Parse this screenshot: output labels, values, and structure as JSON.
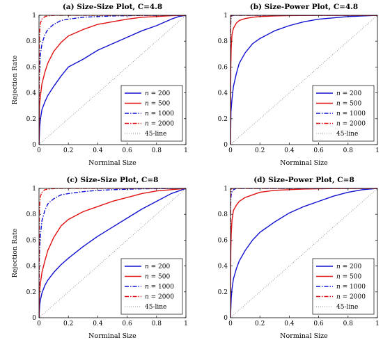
{
  "chart_data": [
    {
      "type": "line",
      "title": "(a) Size-Size Plot, C=4.8",
      "xlabel": "Norminal Size",
      "ylabel": "Rejection Rate",
      "xlim": [
        0,
        1
      ],
      "ylim": [
        0,
        1
      ],
      "xticks": [
        "0",
        "0.2",
        "0.4",
        "0.6",
        "0.8",
        "1"
      ],
      "yticks": [
        "0",
        "0.2",
        "0.4",
        "0.6",
        "0.8",
        "1"
      ],
      "legend_position": "bottom-right",
      "series": [
        {
          "name": "n = 200",
          "var": "n",
          "eq": "= 200",
          "color": "#1010d0",
          "dash": "solid",
          "x": [
            0,
            0.005,
            0.01,
            0.02,
            0.04,
            0.06,
            0.1,
            0.15,
            0.2,
            0.3,
            0.4,
            0.5,
            0.6,
            0.7,
            0.8,
            0.9,
            0.95,
            1
          ],
          "y": [
            0,
            0.14,
            0.2,
            0.27,
            0.33,
            0.38,
            0.45,
            0.53,
            0.6,
            0.66,
            0.73,
            0.78,
            0.83,
            0.88,
            0.92,
            0.97,
            0.99,
            1
          ]
        },
        {
          "name": "n = 500",
          "var": "n",
          "eq": "= 500",
          "color": "#e01010",
          "dash": "solid",
          "x": [
            0,
            0.003,
            0.01,
            0.02,
            0.04,
            0.06,
            0.1,
            0.15,
            0.2,
            0.3,
            0.4,
            0.5,
            0.6,
            0.7,
            0.8,
            0.9,
            1
          ],
          "y": [
            0,
            0.3,
            0.38,
            0.47,
            0.56,
            0.63,
            0.72,
            0.79,
            0.84,
            0.89,
            0.93,
            0.95,
            0.97,
            0.985,
            0.99,
            0.997,
            1
          ]
        },
        {
          "name": "n = 1000",
          "var": "n",
          "eq": "= 1000",
          "color": "#1010d0",
          "dash": "6 2 1.5 2",
          "x": [
            0,
            0.002,
            0.005,
            0.01,
            0.02,
            0.04,
            0.06,
            0.1,
            0.15,
            0.2,
            0.3,
            0.4,
            0.5,
            0.7,
            1
          ],
          "y": [
            0,
            0.5,
            0.6,
            0.7,
            0.78,
            0.85,
            0.89,
            0.93,
            0.96,
            0.97,
            0.985,
            0.99,
            0.995,
            0.999,
            1
          ]
        },
        {
          "name": "n = 2000",
          "var": "n",
          "eq": "= 2000",
          "color": "#e01010",
          "dash": "6 2 1.5 2",
          "x": [
            0,
            0.002,
            0.005,
            0.01,
            0.02,
            0.04,
            0.06,
            0.1,
            0.2,
            1
          ],
          "y": [
            0,
            0.8,
            0.88,
            0.94,
            0.97,
            0.99,
            0.995,
            1,
            1,
            1
          ]
        },
        {
          "name": "45-line",
          "var": "",
          "eq": "45-line",
          "color": "#8a8a8a",
          "dash": "1 2",
          "x": [
            0,
            1
          ],
          "y": [
            0,
            1
          ]
        }
      ]
    },
    {
      "type": "line",
      "title": "(b) Size-Power Plot, C=4.8",
      "xlabel": "Norminal Size",
      "ylabel": "",
      "xlim": [
        0,
        1
      ],
      "ylim": [
        0,
        1
      ],
      "xticks": [
        "0",
        "0.2",
        "0.4",
        "0.6",
        "0.8",
        "1"
      ],
      "yticks": [
        "0",
        "0.2",
        "0.4",
        "0.6",
        "0.8",
        "1"
      ],
      "legend_position": "bottom-right",
      "series": [
        {
          "name": "n = 200",
          "var": "n",
          "eq": "= 200",
          "color": "#1010d0",
          "dash": "solid",
          "x": [
            0,
            0.003,
            0.01,
            0.02,
            0.04,
            0.06,
            0.1,
            0.15,
            0.2,
            0.3,
            0.4,
            0.5,
            0.6,
            0.7,
            0.8,
            0.9,
            1
          ],
          "y": [
            0,
            0.25,
            0.35,
            0.45,
            0.55,
            0.63,
            0.71,
            0.78,
            0.82,
            0.88,
            0.92,
            0.95,
            0.97,
            0.98,
            0.99,
            0.995,
            1
          ]
        },
        {
          "name": "n = 500",
          "var": "n",
          "eq": "= 500",
          "color": "#e01010",
          "dash": "solid",
          "x": [
            0,
            0.002,
            0.005,
            0.01,
            0.02,
            0.04,
            0.06,
            0.1,
            0.15,
            0.2,
            0.3,
            0.4,
            0.6,
            1
          ],
          "y": [
            0,
            0.6,
            0.75,
            0.85,
            0.9,
            0.94,
            0.96,
            0.975,
            0.985,
            0.99,
            0.995,
            0.998,
            1,
            1
          ]
        },
        {
          "name": "n = 1000",
          "var": "n",
          "eq": "= 1000",
          "color": "#1010d0",
          "dash": "6 2 1.5 2",
          "x": [
            0,
            0.001,
            0.003,
            0.006,
            0.01,
            0.02,
            1
          ],
          "y": [
            0,
            0.9,
            0.97,
            0.99,
            0.997,
            1,
            1
          ]
        },
        {
          "name": "n = 2000",
          "var": "n",
          "eq": "= 2000",
          "color": "#e01010",
          "dash": "6 2 1.5 2",
          "x": [
            0,
            0.001,
            0.003,
            0.006,
            1
          ],
          "y": [
            0,
            0.95,
            0.99,
            1,
            1
          ]
        },
        {
          "name": "45-line",
          "var": "",
          "eq": "45-line",
          "color": "#8a8a8a",
          "dash": "1 2",
          "x": [
            0,
            1
          ],
          "y": [
            0,
            1
          ]
        }
      ]
    },
    {
      "type": "line",
      "title": "(c) Size-Size Plot, C=8",
      "xlabel": "Norminal Size",
      "ylabel": "Rejection Rate",
      "xlim": [
        0,
        1
      ],
      "ylim": [
        0,
        1
      ],
      "xticks": [
        "0",
        "0.2",
        "0.4",
        "0.6",
        "0.8",
        "1"
      ],
      "yticks": [
        "0",
        "0.2",
        "0.4",
        "0.6",
        "0.8",
        "1"
      ],
      "legend_position": "bottom-right",
      "series": [
        {
          "name": "n = 200",
          "var": "n",
          "eq": "= 200",
          "color": "#1010d0",
          "dash": "solid",
          "x": [
            0,
            0.005,
            0.01,
            0.02,
            0.04,
            0.06,
            0.1,
            0.15,
            0.2,
            0.3,
            0.4,
            0.5,
            0.6,
            0.7,
            0.8,
            0.9,
            1
          ],
          "y": [
            0,
            0.1,
            0.14,
            0.19,
            0.25,
            0.29,
            0.35,
            0.41,
            0.46,
            0.55,
            0.63,
            0.7,
            0.77,
            0.84,
            0.9,
            0.96,
            1
          ]
        },
        {
          "name": "n = 500",
          "var": "n",
          "eq": "= 500",
          "color": "#e01010",
          "dash": "solid",
          "x": [
            0,
            0.003,
            0.01,
            0.02,
            0.04,
            0.06,
            0.1,
            0.15,
            0.2,
            0.3,
            0.4,
            0.5,
            0.6,
            0.7,
            0.8,
            0.9,
            1
          ],
          "y": [
            0,
            0.2,
            0.27,
            0.35,
            0.44,
            0.52,
            0.62,
            0.71,
            0.76,
            0.82,
            0.86,
            0.9,
            0.93,
            0.96,
            0.98,
            0.99,
            1
          ]
        },
        {
          "name": "n = 1000",
          "var": "n",
          "eq": "= 1000",
          "color": "#1010d0",
          "dash": "6 2 1.5 2",
          "x": [
            0,
            0.002,
            0.005,
            0.01,
            0.02,
            0.04,
            0.06,
            0.1,
            0.15,
            0.2,
            0.3,
            0.4,
            0.5,
            0.7,
            1
          ],
          "y": [
            0,
            0.45,
            0.55,
            0.64,
            0.75,
            0.83,
            0.88,
            0.92,
            0.95,
            0.96,
            0.975,
            0.985,
            0.99,
            0.997,
            1
          ]
        },
        {
          "name": "n = 2000",
          "var": "n",
          "eq": "= 2000",
          "color": "#e01010",
          "dash": "6 2 1.5 2",
          "x": [
            0,
            0.002,
            0.005,
            0.01,
            0.02,
            0.04,
            0.08,
            0.15,
            1
          ],
          "y": [
            0,
            0.8,
            0.88,
            0.94,
            0.97,
            0.99,
            0.997,
            1,
            1
          ]
        },
        {
          "name": "45-line",
          "var": "",
          "eq": "45-line",
          "color": "#8a8a8a",
          "dash": "1 2",
          "x": [
            0,
            1
          ],
          "y": [
            0,
            1
          ]
        }
      ]
    },
    {
      "type": "line",
      "title": "(d) Size-Power Plot, C=8",
      "xlabel": "Norminal Size",
      "ylabel": "",
      "xlim": [
        0,
        1
      ],
      "ylim": [
        0,
        1
      ],
      "xticks": [
        "0",
        "0.2",
        "0.4",
        "0.6",
        "0.8",
        "1"
      ],
      "yticks": [
        "0",
        "0.2",
        "0.4",
        "0.6",
        "0.8",
        "1"
      ],
      "legend_position": "bottom-right",
      "series": [
        {
          "name": "n = 200",
          "var": "n",
          "eq": "= 200",
          "color": "#1010d0",
          "dash": "solid",
          "x": [
            0,
            0.005,
            0.01,
            0.02,
            0.04,
            0.06,
            0.1,
            0.15,
            0.2,
            0.3,
            0.4,
            0.5,
            0.6,
            0.7,
            0.8,
            0.9,
            1
          ],
          "y": [
            0,
            0.15,
            0.22,
            0.3,
            0.38,
            0.44,
            0.52,
            0.6,
            0.66,
            0.74,
            0.81,
            0.86,
            0.9,
            0.94,
            0.97,
            0.99,
            1
          ]
        },
        {
          "name": "n = 500",
          "var": "n",
          "eq": "= 500",
          "color": "#e01010",
          "dash": "solid",
          "x": [
            0,
            0.002,
            0.005,
            0.01,
            0.02,
            0.04,
            0.06,
            0.1,
            0.15,
            0.2,
            0.3,
            0.4,
            0.5,
            0.7,
            1
          ],
          "y": [
            0,
            0.5,
            0.65,
            0.75,
            0.83,
            0.87,
            0.9,
            0.93,
            0.95,
            0.97,
            0.985,
            0.99,
            0.995,
            0.999,
            1
          ]
        },
        {
          "name": "n = 1000",
          "var": "n",
          "eq": "= 1000",
          "color": "#1010d0",
          "dash": "6 2 1.5 2",
          "x": [
            0,
            0.001,
            0.003,
            0.006,
            0.01,
            0.02,
            0.04,
            1
          ],
          "y": [
            0,
            0.85,
            0.93,
            0.96,
            0.975,
            0.99,
            1,
            1
          ]
        },
        {
          "name": "n = 2000",
          "var": "n",
          "eq": "= 2000",
          "color": "#e01010",
          "dash": "6 2 1.5 2",
          "x": [
            0,
            0.001,
            0.003,
            0.006,
            1
          ],
          "y": [
            0,
            0.94,
            0.99,
            1,
            1
          ]
        },
        {
          "name": "45-line",
          "var": "",
          "eq": "45-line",
          "color": "#8a8a8a",
          "dash": "1 2",
          "x": [
            0,
            1
          ],
          "y": [
            0,
            1
          ]
        }
      ]
    }
  ]
}
